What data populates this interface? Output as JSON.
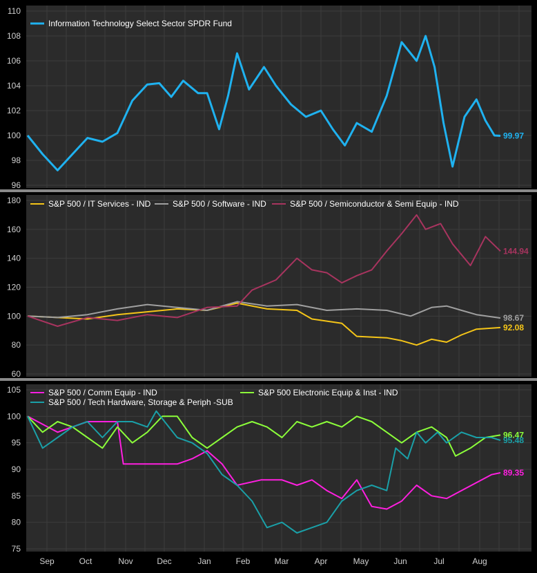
{
  "colors": {
    "background": "#000000",
    "panel": "#2b2b2b",
    "grid": "#3d3d3d",
    "separator": "#8a8a8a",
    "text": "#ffffff",
    "axis_text": "#d0d0d0"
  },
  "x_labels": [
    "Sep",
    "Oct",
    "Nov",
    "Dec",
    "Jan",
    "Feb",
    "Mar",
    "Apr",
    "May",
    "Jun",
    "Jul",
    "Aug"
  ],
  "chart_data": [
    {
      "type": "line",
      "panel": "top",
      "ylim": [
        96,
        110
      ],
      "yticks": [
        96,
        98,
        100,
        102,
        104,
        106,
        108,
        110
      ],
      "legend": "top-left",
      "series": [
        {
          "name": "Information Technology Select Sector SPDR Fund",
          "color": "#1fb2f0",
          "last_label": "99.97",
          "points": [
            [
              0,
              100
            ],
            [
              0.5,
              98.5
            ],
            [
              1,
              97.2
            ],
            [
              1.5,
              98.5
            ],
            [
              2,
              99.8
            ],
            [
              2.5,
              99.5
            ],
            [
              3,
              100.2
            ],
            [
              3.5,
              102.8
            ],
            [
              4,
              104.1
            ],
            [
              4.4,
              104.2
            ],
            [
              4.8,
              103.1
            ],
            [
              5.2,
              104.4
            ],
            [
              5.7,
              103.4
            ],
            [
              6,
              103.4
            ],
            [
              6.4,
              100.5
            ],
            [
              6.7,
              103.2
            ],
            [
              7.0,
              106.6
            ],
            [
              7.4,
              103.7
            ],
            [
              7.9,
              105.5
            ],
            [
              8.3,
              104.0
            ],
            [
              8.8,
              102.5
            ],
            [
              9.3,
              101.5
            ],
            [
              9.8,
              102.0
            ],
            [
              10.2,
              100.5
            ],
            [
              10.6,
              99.2
            ],
            [
              11.0,
              101.0
            ],
            [
              11.5,
              100.3
            ],
            [
              12.0,
              103.2
            ],
            [
              12.5,
              107.5
            ],
            [
              13.0,
              106.0
            ],
            [
              13.3,
              108.0
            ],
            [
              13.6,
              105.5
            ],
            [
              13.9,
              101.0
            ],
            [
              14.2,
              97.5
            ],
            [
              14.6,
              101.5
            ],
            [
              15.0,
              102.9
            ],
            [
              15.3,
              101.2
            ],
            [
              15.6,
              100.0
            ],
            [
              15.8,
              99.97
            ]
          ]
        }
      ]
    },
    {
      "type": "line",
      "panel": "middle",
      "ylim": [
        60,
        180
      ],
      "yticks": [
        60,
        80,
        100,
        120,
        140,
        160,
        180
      ],
      "legend": "top-left",
      "series": [
        {
          "name": "S&P 500 / IT Services - IND",
          "color": "#f5c518",
          "last_label": "92.08",
          "points": [
            [
              0,
              100
            ],
            [
              1,
              99
            ],
            [
              2,
              98
            ],
            [
              3,
              101
            ],
            [
              4,
              103
            ],
            [
              5,
              105
            ],
            [
              6,
              104
            ],
            [
              7,
              109
            ],
            [
              8,
              105
            ],
            [
              9,
              104
            ],
            [
              9.5,
              98
            ],
            [
              10.5,
              95
            ],
            [
              11,
              86
            ],
            [
              12,
              85
            ],
            [
              12.5,
              83
            ],
            [
              13,
              80
            ],
            [
              13.5,
              84
            ],
            [
              14,
              82
            ],
            [
              14.5,
              87
            ],
            [
              15,
              91
            ],
            [
              15.8,
              92.08
            ]
          ]
        },
        {
          "name": "S&P 500 / Software - IND",
          "color": "#a0a0a0",
          "last_label": "98.67",
          "points": [
            [
              0,
              100
            ],
            [
              1,
              99
            ],
            [
              2,
              101
            ],
            [
              3,
              105
            ],
            [
              4,
              108
            ],
            [
              5,
              106
            ],
            [
              6,
              104
            ],
            [
              7,
              110
            ],
            [
              8,
              107
            ],
            [
              9,
              108
            ],
            [
              10,
              104
            ],
            [
              11,
              105
            ],
            [
              12,
              104
            ],
            [
              12.8,
              100
            ],
            [
              13.5,
              106
            ],
            [
              14,
              107
            ],
            [
              14.5,
              104
            ],
            [
              15,
              101
            ],
            [
              15.8,
              98.67
            ]
          ]
        },
        {
          "name": "S&P 500 / Semiconductor & Semi Equip - IND",
          "color": "#a8345f",
          "last_label": "144.94",
          "points": [
            [
              0,
              100
            ],
            [
              1,
              93
            ],
            [
              2,
              99
            ],
            [
              3,
              97
            ],
            [
              4,
              101
            ],
            [
              5,
              99
            ],
            [
              6,
              106
            ],
            [
              7,
              107
            ],
            [
              7.5,
              118
            ],
            [
              8.3,
              125
            ],
            [
              9,
              140
            ],
            [
              9.5,
              132
            ],
            [
              10,
              130
            ],
            [
              10.5,
              123
            ],
            [
              11,
              128
            ],
            [
              11.5,
              132
            ],
            [
              12,
              145
            ],
            [
              12.5,
              157
            ],
            [
              13,
              170
            ],
            [
              13.3,
              160
            ],
            [
              13.8,
              164
            ],
            [
              14.2,
              150
            ],
            [
              14.8,
              135
            ],
            [
              15.3,
              155
            ],
            [
              15.8,
              144.94
            ]
          ]
        }
      ]
    },
    {
      "type": "line",
      "panel": "bottom",
      "ylim": [
        75,
        105
      ],
      "yticks": [
        75,
        80,
        85,
        90,
        95,
        100,
        105
      ],
      "legend": "top-left",
      "series": [
        {
          "name": "S&P 500 / Comm Equip - IND",
          "color": "#ff1fe0",
          "last_label": "89.35",
          "points": [
            [
              0,
              100
            ],
            [
              1,
              97
            ],
            [
              2,
              99
            ],
            [
              3,
              99
            ],
            [
              3.2,
              91
            ],
            [
              4,
              91
            ],
            [
              5,
              91
            ],
            [
              5.5,
              92
            ],
            [
              6,
              93.5
            ],
            [
              6.5,
              91
            ],
            [
              7,
              87
            ],
            [
              7.8,
              88
            ],
            [
              8.5,
              88
            ],
            [
              9,
              87
            ],
            [
              9.5,
              88
            ],
            [
              10,
              86
            ],
            [
              10.5,
              84.5
            ],
            [
              11,
              88
            ],
            [
              11.5,
              83
            ],
            [
              12,
              82.5
            ],
            [
              12.5,
              84
            ],
            [
              13,
              87
            ],
            [
              13.5,
              85
            ],
            [
              14,
              84.5
            ],
            [
              14.5,
              86
            ],
            [
              15,
              87.5
            ],
            [
              15.5,
              89
            ],
            [
              15.8,
              89.35
            ]
          ]
        },
        {
          "name": "S&P 500 Electronic Equip & Inst - IND",
          "color": "#8cff3a",
          "last_label": "96.47",
          "points": [
            [
              0,
              100
            ],
            [
              0.5,
              97
            ],
            [
              1,
              99
            ],
            [
              1.5,
              98
            ],
            [
              2,
              96
            ],
            [
              2.5,
              94
            ],
            [
              3,
              98
            ],
            [
              3.5,
              95
            ],
            [
              4,
              97
            ],
            [
              4.5,
              100
            ],
            [
              5,
              100
            ],
            [
              5.5,
              96
            ],
            [
              6,
              94
            ],
            [
              6.5,
              96
            ],
            [
              7,
              98
            ],
            [
              7.5,
              99
            ],
            [
              8,
              98
            ],
            [
              8.5,
              96
            ],
            [
              9,
              99
            ],
            [
              9.5,
              98
            ],
            [
              10,
              99
            ],
            [
              10.5,
              98
            ],
            [
              11,
              100
            ],
            [
              11.5,
              99
            ],
            [
              12,
              97
            ],
            [
              12.5,
              95
            ],
            [
              13,
              97
            ],
            [
              13.5,
              98
            ],
            [
              14,
              96
            ],
            [
              14.3,
              92.5
            ],
            [
              14.8,
              94
            ],
            [
              15.3,
              96
            ],
            [
              15.8,
              96.47
            ]
          ]
        },
        {
          "name": "S&P 500 / Tech Hardware, Storage & Periph -SUB",
          "color": "#1aa0a8",
          "last_label": "95.48",
          "points": [
            [
              0,
              100
            ],
            [
              0.5,
              94
            ],
            [
              1,
              96
            ],
            [
              1.5,
              98
            ],
            [
              2,
              99
            ],
            [
              2.5,
              96
            ],
            [
              3,
              99
            ],
            [
              3.5,
              99
            ],
            [
              4,
              98
            ],
            [
              4.3,
              101
            ],
            [
              5,
              96
            ],
            [
              5.5,
              95
            ],
            [
              6,
              93
            ],
            [
              6.5,
              89
            ],
            [
              7,
              87
            ],
            [
              7.5,
              84
            ],
            [
              8,
              79
            ],
            [
              8.5,
              80
            ],
            [
              9,
              78
            ],
            [
              9.5,
              79
            ],
            [
              10,
              80
            ],
            [
              10.5,
              84
            ],
            [
              11,
              86
            ],
            [
              11.5,
              87
            ],
            [
              12,
              86
            ],
            [
              12.3,
              94
            ],
            [
              12.7,
              92
            ],
            [
              13,
              97
            ],
            [
              13.3,
              95
            ],
            [
              13.7,
              97
            ],
            [
              14,
              95
            ],
            [
              14.5,
              97
            ],
            [
              15,
              96
            ],
            [
              15.5,
              96
            ],
            [
              15.8,
              95.48
            ]
          ]
        }
      ]
    }
  ]
}
